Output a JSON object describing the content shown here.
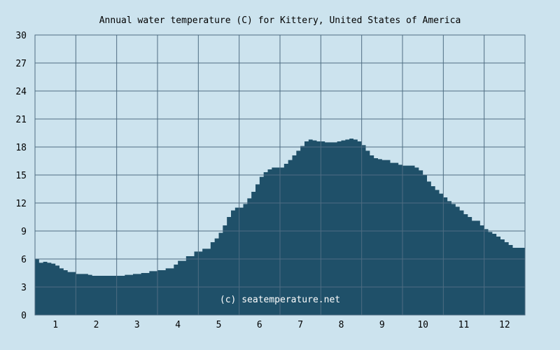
{
  "chart_data": {
    "type": "area",
    "title": "Annual water temperature (C) for Kittery, United States of America",
    "xlabel": "",
    "ylabel": "",
    "xlim": [
      0.5,
      12.5
    ],
    "ylim": [
      0,
      30
    ],
    "yticks": [
      0,
      3,
      6,
      9,
      12,
      15,
      18,
      21,
      24,
      27,
      30
    ],
    "xticks": [
      "1",
      "2",
      "3",
      "4",
      "5",
      "6",
      "7",
      "8",
      "9",
      "10",
      "11",
      "12"
    ],
    "grid": true,
    "colors": {
      "background": "#cce3ee",
      "plot": "#cce3ee",
      "fill": "#1f5069",
      "grid": "#4f6d82"
    },
    "watermark": "(c) seatemperature.net",
    "series": [
      {
        "x": [
          0.5,
          0.6,
          0.7,
          0.8,
          0.9,
          1.0,
          1.1,
          1.2,
          1.3,
          1.5,
          1.7,
          1.8,
          1.9,
          2.0,
          2.1,
          2.2,
          2.3,
          2.5,
          2.7,
          2.9,
          3.1,
          3.3,
          3.5,
          3.7,
          3.9,
          4.0,
          4.2,
          4.4,
          4.6,
          4.8,
          4.9,
          5.0,
          5.1,
          5.2,
          5.3,
          5.4,
          5.6,
          5.7,
          5.8,
          5.9,
          6.0,
          6.1,
          6.2,
          6.3,
          6.5,
          6.6,
          6.7,
          6.8,
          6.9,
          7.0,
          7.1,
          7.2,
          7.3,
          7.4,
          7.6,
          7.8,
          7.9,
          8.0,
          8.1,
          8.2,
          8.3,
          8.4,
          8.5,
          8.6,
          8.7,
          8.8,
          8.9,
          9.0,
          9.2,
          9.4,
          9.5,
          9.6,
          9.8,
          9.9,
          10.0,
          10.1,
          10.2,
          10.3,
          10.4,
          10.5,
          10.6,
          10.7,
          10.8,
          10.9,
          11.0,
          11.1,
          11.2,
          11.4,
          11.5,
          11.6,
          11.7,
          11.8,
          11.9,
          12.0,
          12.1,
          12.2,
          12.3,
          12.4,
          12.5
        ],
        "y": [
          6.0,
          5.6,
          5.7,
          5.6,
          5.5,
          5.3,
          5.0,
          4.8,
          4.6,
          4.4,
          4.4,
          4.3,
          4.2,
          4.2,
          4.2,
          4.2,
          4.2,
          4.2,
          4.3,
          4.4,
          4.5,
          4.7,
          4.8,
          5.0,
          5.4,
          5.8,
          6.3,
          6.8,
          7.1,
          7.8,
          8.2,
          8.8,
          9.6,
          10.5,
          11.2,
          11.5,
          11.9,
          12.5,
          13.2,
          14.0,
          14.8,
          15.3,
          15.6,
          15.8,
          15.8,
          16.2,
          16.6,
          17.1,
          17.6,
          18.1,
          18.6,
          18.8,
          18.7,
          18.6,
          18.5,
          18.5,
          18.6,
          18.7,
          18.8,
          18.9,
          18.8,
          18.6,
          18.2,
          17.6,
          17.1,
          16.8,
          16.7,
          16.6,
          16.3,
          16.1,
          16.0,
          16.0,
          15.8,
          15.5,
          15.0,
          14.3,
          13.8,
          13.4,
          13.0,
          12.6,
          12.2,
          11.9,
          11.6,
          11.2,
          10.8,
          10.5,
          10.1,
          9.6,
          9.2,
          8.9,
          8.7,
          8.4,
          8.1,
          7.8,
          7.5,
          7.2,
          7.2,
          7.2,
          7.2
        ]
      }
    ]
  }
}
